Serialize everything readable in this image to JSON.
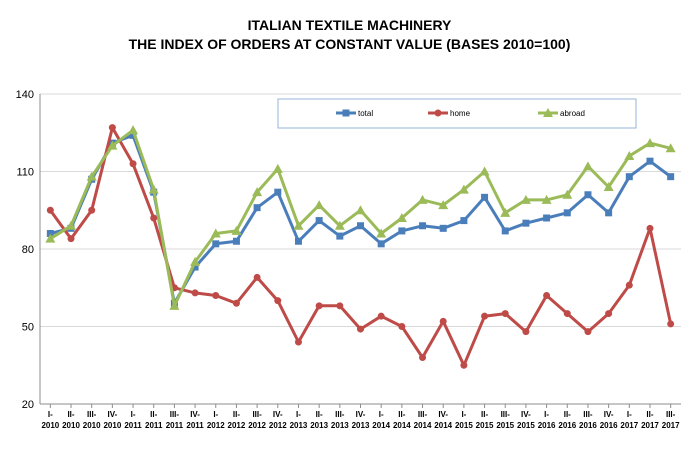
{
  "chart_data": {
    "type": "line",
    "title_line1": "ITALIAN TEXTILE MACHINERY",
    "title_line2": "THE INDEX OF ORDERS AT CONSTANT VALUE (BASES 2010=100)",
    "xlabel": "",
    "ylabel": "",
    "ylim": [
      20,
      140
    ],
    "yticks": [
      "20",
      "50",
      "80",
      "110",
      "140"
    ],
    "grid": true,
    "legend_position": "top-center",
    "categories": [
      [
        "I-",
        "2010"
      ],
      [
        "II-",
        "2010"
      ],
      [
        "III-",
        "2010"
      ],
      [
        "IV-",
        "2010"
      ],
      [
        "I-",
        "2011"
      ],
      [
        "II-",
        "2011"
      ],
      [
        "III-",
        "2011"
      ],
      [
        "IV-",
        "2011"
      ],
      [
        "I-",
        "2012"
      ],
      [
        "II-",
        "2012"
      ],
      [
        "III-",
        "2012"
      ],
      [
        "IV-",
        "2012"
      ],
      [
        "I-",
        "2013"
      ],
      [
        "II-",
        "2013"
      ],
      [
        "III-",
        "2013"
      ],
      [
        "IV-",
        "2013"
      ],
      [
        "I-",
        "2014"
      ],
      [
        "II-",
        "2014"
      ],
      [
        "III-",
        "2014"
      ],
      [
        "IV-",
        "2014"
      ],
      [
        "I-",
        "2015"
      ],
      [
        "II-",
        "2015"
      ],
      [
        "III-",
        "2015"
      ],
      [
        "IV-",
        "2015"
      ],
      [
        "I-",
        "2016"
      ],
      [
        "II-",
        "2016"
      ],
      [
        "III-",
        "2016"
      ],
      [
        "IV-",
        "2016"
      ],
      [
        "I-",
        "2017"
      ],
      [
        "II-",
        "2017"
      ],
      [
        "III-",
        "2017"
      ]
    ],
    "series": [
      {
        "name": "total",
        "color": "#4a7ebb",
        "marker": "square",
        "values": [
          86,
          88,
          107,
          121,
          124,
          102,
          59,
          73,
          82,
          83,
          96,
          102,
          83,
          91,
          85,
          89,
          82,
          87,
          89,
          88,
          91,
          100,
          87,
          90,
          92,
          94,
          101,
          94,
          108,
          114,
          108
        ]
      },
      {
        "name": "home",
        "color": "#be4b48",
        "marker": "circle",
        "values": [
          95,
          84,
          95,
          127,
          113,
          92,
          65,
          63,
          62,
          59,
          69,
          60,
          44,
          58,
          58,
          49,
          54,
          50,
          38,
          52,
          35,
          54,
          55,
          48,
          62,
          55,
          48,
          55,
          66,
          88,
          51
        ]
      },
      {
        "name": "abroad",
        "color": "#9bbb59",
        "marker": "triangle",
        "values": [
          84,
          89,
          108,
          120,
          126,
          103,
          58,
          75,
          86,
          87,
          102,
          111,
          89,
          97,
          89,
          95,
          86,
          92,
          99,
          97,
          103,
          110,
          94,
          99,
          99,
          101,
          112,
          104,
          116,
          121,
          119
        ]
      }
    ]
  }
}
